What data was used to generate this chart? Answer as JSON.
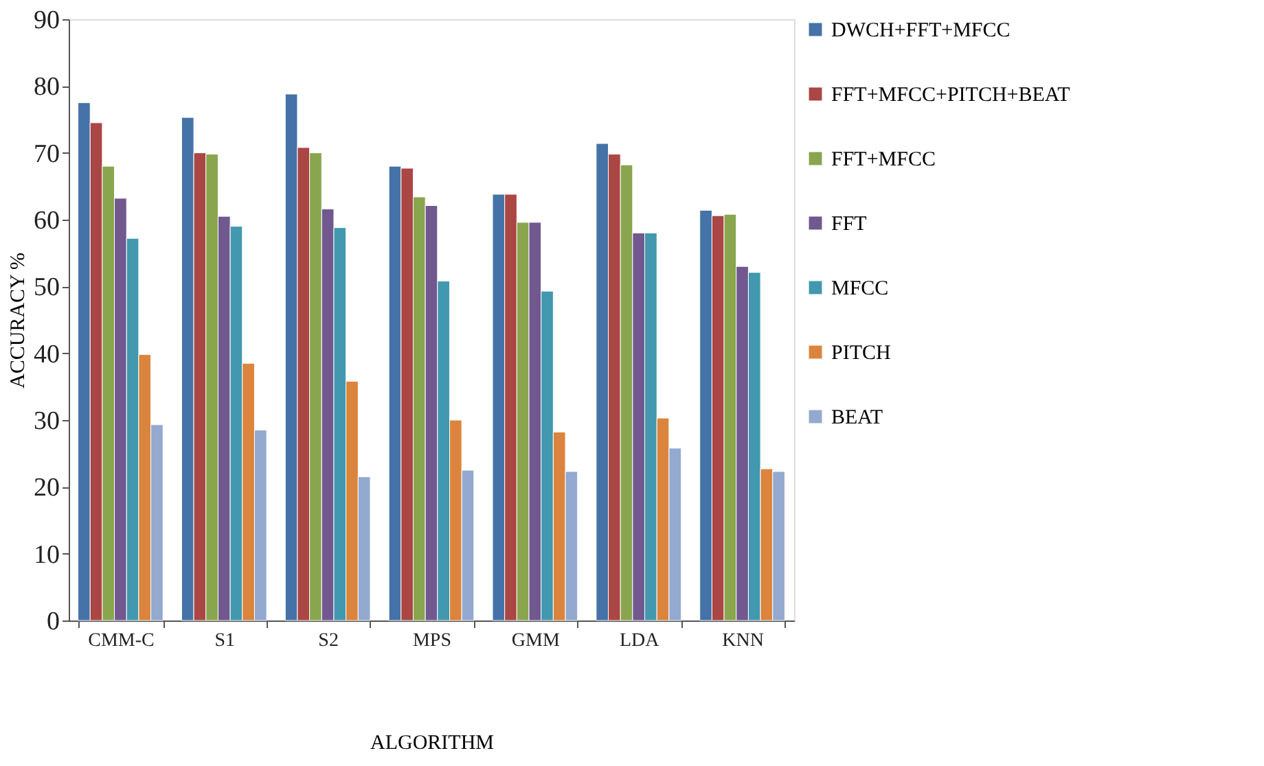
{
  "chart_data": {
    "type": "bar",
    "xlabel": "ALGORITHM",
    "ylabel": "ACCURACY %",
    "categories": [
      "CMM-C",
      "S1",
      "S2",
      "MPS",
      "GMM",
      "LDA",
      "KNN"
    ],
    "series": [
      {
        "name": "DWCH+FFT+MFCC",
        "color": "#4572a7",
        "values": [
          77.5,
          75.3,
          78.8,
          68,
          63.8,
          71.4,
          61.4
        ]
      },
      {
        "name": "FFT+MFCC+PITCH+BEAT",
        "color": "#aa4643",
        "values": [
          74.5,
          70,
          70.8,
          67.7,
          63.8,
          69.8,
          60.6
        ]
      },
      {
        "name": "FFT+MFCC",
        "color": "#89a54e",
        "values": [
          68,
          69.8,
          70,
          63.4,
          59.6,
          68.2,
          60.8
        ]
      },
      {
        "name": "FFT",
        "color": "#71588f",
        "values": [
          63.2,
          60.5,
          61.6,
          62.1,
          59.6,
          58,
          53
        ]
      },
      {
        "name": "MFCC",
        "color": "#4198af",
        "values": [
          57.2,
          59,
          58.8,
          50.8,
          49.3,
          58,
          52.1
        ]
      },
      {
        "name": "PITCH",
        "color": "#db843d",
        "values": [
          39.8,
          38.5,
          35.8,
          30,
          28.2,
          30.3,
          22.7
        ]
      },
      {
        "name": "BEAT",
        "color": "#93a9cf",
        "values": [
          29.3,
          28.5,
          21.5,
          22.5,
          22.3,
          25.8,
          22.3
        ]
      }
    ],
    "ylim": [
      0,
      90
    ],
    "yticks": [
      0,
      10,
      20,
      30,
      40,
      50,
      60,
      70,
      80,
      90
    ],
    "grid": false,
    "legend": "right"
  }
}
